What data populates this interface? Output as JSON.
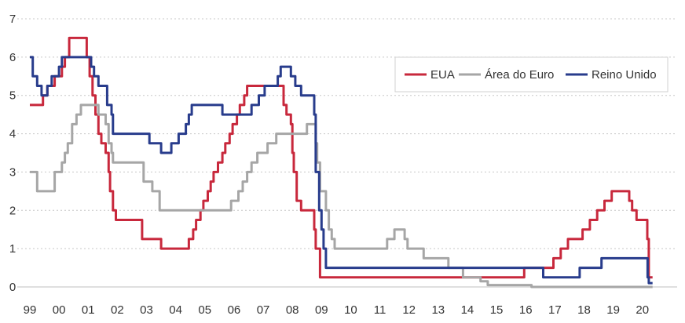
{
  "chart_data": {
    "type": "line",
    "title": "",
    "xlabel": "",
    "ylabel": "",
    "xlim": [
      1999.0,
      2020.6
    ],
    "ylim": [
      0,
      7
    ],
    "x_ticks": [
      {
        "x": 1999,
        "label": "99"
      },
      {
        "x": 2000,
        "label": "00"
      },
      {
        "x": 2001,
        "label": "01"
      },
      {
        "x": 2002,
        "label": "02"
      },
      {
        "x": 2003,
        "label": "03"
      },
      {
        "x": 2004,
        "label": "04"
      },
      {
        "x": 2005,
        "label": "05"
      },
      {
        "x": 2006,
        "label": "06"
      },
      {
        "x": 2007,
        "label": "07"
      },
      {
        "x": 2008,
        "label": "08"
      },
      {
        "x": 2009,
        "label": "09"
      },
      {
        "x": 2010,
        "label": "10"
      },
      {
        "x": 2011,
        "label": "11"
      },
      {
        "x": 2012,
        "label": "12"
      },
      {
        "x": 2013,
        "label": "13"
      },
      {
        "x": 2014,
        "label": "14"
      },
      {
        "x": 2015,
        "label": "15"
      },
      {
        "x": 2016,
        "label": "16"
      },
      {
        "x": 2017,
        "label": "17"
      },
      {
        "x": 2018,
        "label": "18"
      },
      {
        "x": 2019,
        "label": "19"
      },
      {
        "x": 2020,
        "label": "20"
      }
    ],
    "y_ticks": [
      {
        "y": 0,
        "label": "0"
      },
      {
        "y": 1,
        "label": "1"
      },
      {
        "y": 2,
        "label": "2"
      },
      {
        "y": 3,
        "label": "3"
      },
      {
        "y": 4,
        "label": "4"
      },
      {
        "y": 5,
        "label": "5"
      },
      {
        "y": 6,
        "label": "6"
      },
      {
        "y": 7,
        "label": "7"
      }
    ],
    "grid": true,
    "legend_position": "top-right",
    "series": [
      {
        "name": "EUA",
        "color": "#c8283c",
        "step": true,
        "points": [
          [
            1999.0,
            4.75
          ],
          [
            1999.45,
            5.0
          ],
          [
            1999.6,
            5.25
          ],
          [
            1999.85,
            5.5
          ],
          [
            2000.1,
            5.75
          ],
          [
            2000.2,
            6.0
          ],
          [
            2000.35,
            6.5
          ],
          [
            2000.95,
            6.0
          ],
          [
            2001.05,
            5.5
          ],
          [
            2001.15,
            5.0
          ],
          [
            2001.25,
            4.5
          ],
          [
            2001.35,
            4.0
          ],
          [
            2001.45,
            3.75
          ],
          [
            2001.6,
            3.5
          ],
          [
            2001.7,
            3.0
          ],
          [
            2001.75,
            2.5
          ],
          [
            2001.85,
            2.0
          ],
          [
            2001.95,
            1.75
          ],
          [
            2002.85,
            1.25
          ],
          [
            2003.5,
            1.0
          ],
          [
            2004.45,
            1.25
          ],
          [
            2004.6,
            1.5
          ],
          [
            2004.7,
            1.75
          ],
          [
            2004.85,
            2.0
          ],
          [
            2004.95,
            2.25
          ],
          [
            2005.1,
            2.5
          ],
          [
            2005.2,
            2.75
          ],
          [
            2005.3,
            3.0
          ],
          [
            2005.45,
            3.25
          ],
          [
            2005.6,
            3.5
          ],
          [
            2005.7,
            3.75
          ],
          [
            2005.85,
            4.0
          ],
          [
            2005.95,
            4.25
          ],
          [
            2006.1,
            4.5
          ],
          [
            2006.2,
            4.75
          ],
          [
            2006.35,
            5.0
          ],
          [
            2006.45,
            5.25
          ],
          [
            2007.7,
            4.75
          ],
          [
            2007.8,
            4.5
          ],
          [
            2007.95,
            4.25
          ],
          [
            2008.0,
            3.5
          ],
          [
            2008.05,
            3.0
          ],
          [
            2008.15,
            2.25
          ],
          [
            2008.3,
            2.0
          ],
          [
            2008.75,
            1.5
          ],
          [
            2008.8,
            1.0
          ],
          [
            2008.95,
            0.25
          ],
          [
            2015.95,
            0.5
          ],
          [
            2016.95,
            0.75
          ],
          [
            2017.2,
            1.0
          ],
          [
            2017.45,
            1.25
          ],
          [
            2017.95,
            1.5
          ],
          [
            2018.2,
            1.75
          ],
          [
            2018.45,
            2.0
          ],
          [
            2018.7,
            2.25
          ],
          [
            2018.95,
            2.5
          ],
          [
            2019.55,
            2.25
          ],
          [
            2019.65,
            2.0
          ],
          [
            2019.8,
            1.75
          ],
          [
            2020.17,
            1.25
          ],
          [
            2020.22,
            0.25
          ],
          [
            2020.35,
            0.25
          ]
        ]
      },
      {
        "name": "Área do Euro",
        "color": "#a6a6a6",
        "step": true,
        "points": [
          [
            1999.0,
            3.0
          ],
          [
            1999.25,
            2.5
          ],
          [
            1999.85,
            3.0
          ],
          [
            2000.1,
            3.25
          ],
          [
            2000.2,
            3.5
          ],
          [
            2000.3,
            3.75
          ],
          [
            2000.45,
            4.25
          ],
          [
            2000.6,
            4.5
          ],
          [
            2000.75,
            4.75
          ],
          [
            2001.35,
            4.5
          ],
          [
            2001.6,
            4.25
          ],
          [
            2001.7,
            3.75
          ],
          [
            2001.8,
            3.5
          ],
          [
            2001.85,
            3.25
          ],
          [
            2002.9,
            2.75
          ],
          [
            2003.2,
            2.5
          ],
          [
            2003.45,
            2.0
          ],
          [
            2005.9,
            2.25
          ],
          [
            2006.15,
            2.5
          ],
          [
            2006.3,
            2.75
          ],
          [
            2006.45,
            3.0
          ],
          [
            2006.6,
            3.25
          ],
          [
            2006.8,
            3.5
          ],
          [
            2007.15,
            3.75
          ],
          [
            2007.45,
            4.0
          ],
          [
            2008.5,
            4.25
          ],
          [
            2008.8,
            3.75
          ],
          [
            2008.85,
            3.25
          ],
          [
            2008.95,
            2.5
          ],
          [
            2009.15,
            2.0
          ],
          [
            2009.25,
            1.5
          ],
          [
            2009.35,
            1.25
          ],
          [
            2009.45,
            1.0
          ],
          [
            2011.25,
            1.25
          ],
          [
            2011.5,
            1.5
          ],
          [
            2011.85,
            1.25
          ],
          [
            2011.95,
            1.0
          ],
          [
            2012.5,
            0.75
          ],
          [
            2013.35,
            0.5
          ],
          [
            2013.85,
            0.25
          ],
          [
            2014.45,
            0.15
          ],
          [
            2014.7,
            0.05
          ],
          [
            2016.2,
            0.0
          ],
          [
            2020.35,
            0.0
          ]
        ]
      },
      {
        "name": "Reino Unido",
        "color": "#283c8c",
        "step": true,
        "points": [
          [
            1999.0,
            6.0
          ],
          [
            1999.1,
            5.5
          ],
          [
            1999.25,
            5.25
          ],
          [
            1999.4,
            5.0
          ],
          [
            1999.6,
            5.25
          ],
          [
            1999.75,
            5.5
          ],
          [
            2000.0,
            5.75
          ],
          [
            2000.1,
            6.0
          ],
          [
            2001.1,
            5.75
          ],
          [
            2001.2,
            5.5
          ],
          [
            2001.35,
            5.25
          ],
          [
            2001.65,
            4.75
          ],
          [
            2001.8,
            4.5
          ],
          [
            2001.85,
            4.0
          ],
          [
            2003.1,
            3.75
          ],
          [
            2003.5,
            3.5
          ],
          [
            2003.85,
            3.75
          ],
          [
            2004.1,
            4.0
          ],
          [
            2004.35,
            4.25
          ],
          [
            2004.45,
            4.5
          ],
          [
            2004.55,
            4.75
          ],
          [
            2005.6,
            4.5
          ],
          [
            2006.6,
            4.75
          ],
          [
            2006.85,
            5.0
          ],
          [
            2007.05,
            5.25
          ],
          [
            2007.5,
            5.5
          ],
          [
            2007.6,
            5.75
          ],
          [
            2007.95,
            5.5
          ],
          [
            2008.1,
            5.25
          ],
          [
            2008.3,
            5.0
          ],
          [
            2008.75,
            4.5
          ],
          [
            2008.8,
            3.0
          ],
          [
            2008.92,
            2.0
          ],
          [
            2009.0,
            1.5
          ],
          [
            2009.07,
            1.0
          ],
          [
            2009.15,
            0.5
          ],
          [
            2016.6,
            0.25
          ],
          [
            2017.85,
            0.5
          ],
          [
            2018.6,
            0.75
          ],
          [
            2020.18,
            0.25
          ],
          [
            2020.22,
            0.1
          ],
          [
            2020.35,
            0.1
          ]
        ]
      }
    ]
  }
}
